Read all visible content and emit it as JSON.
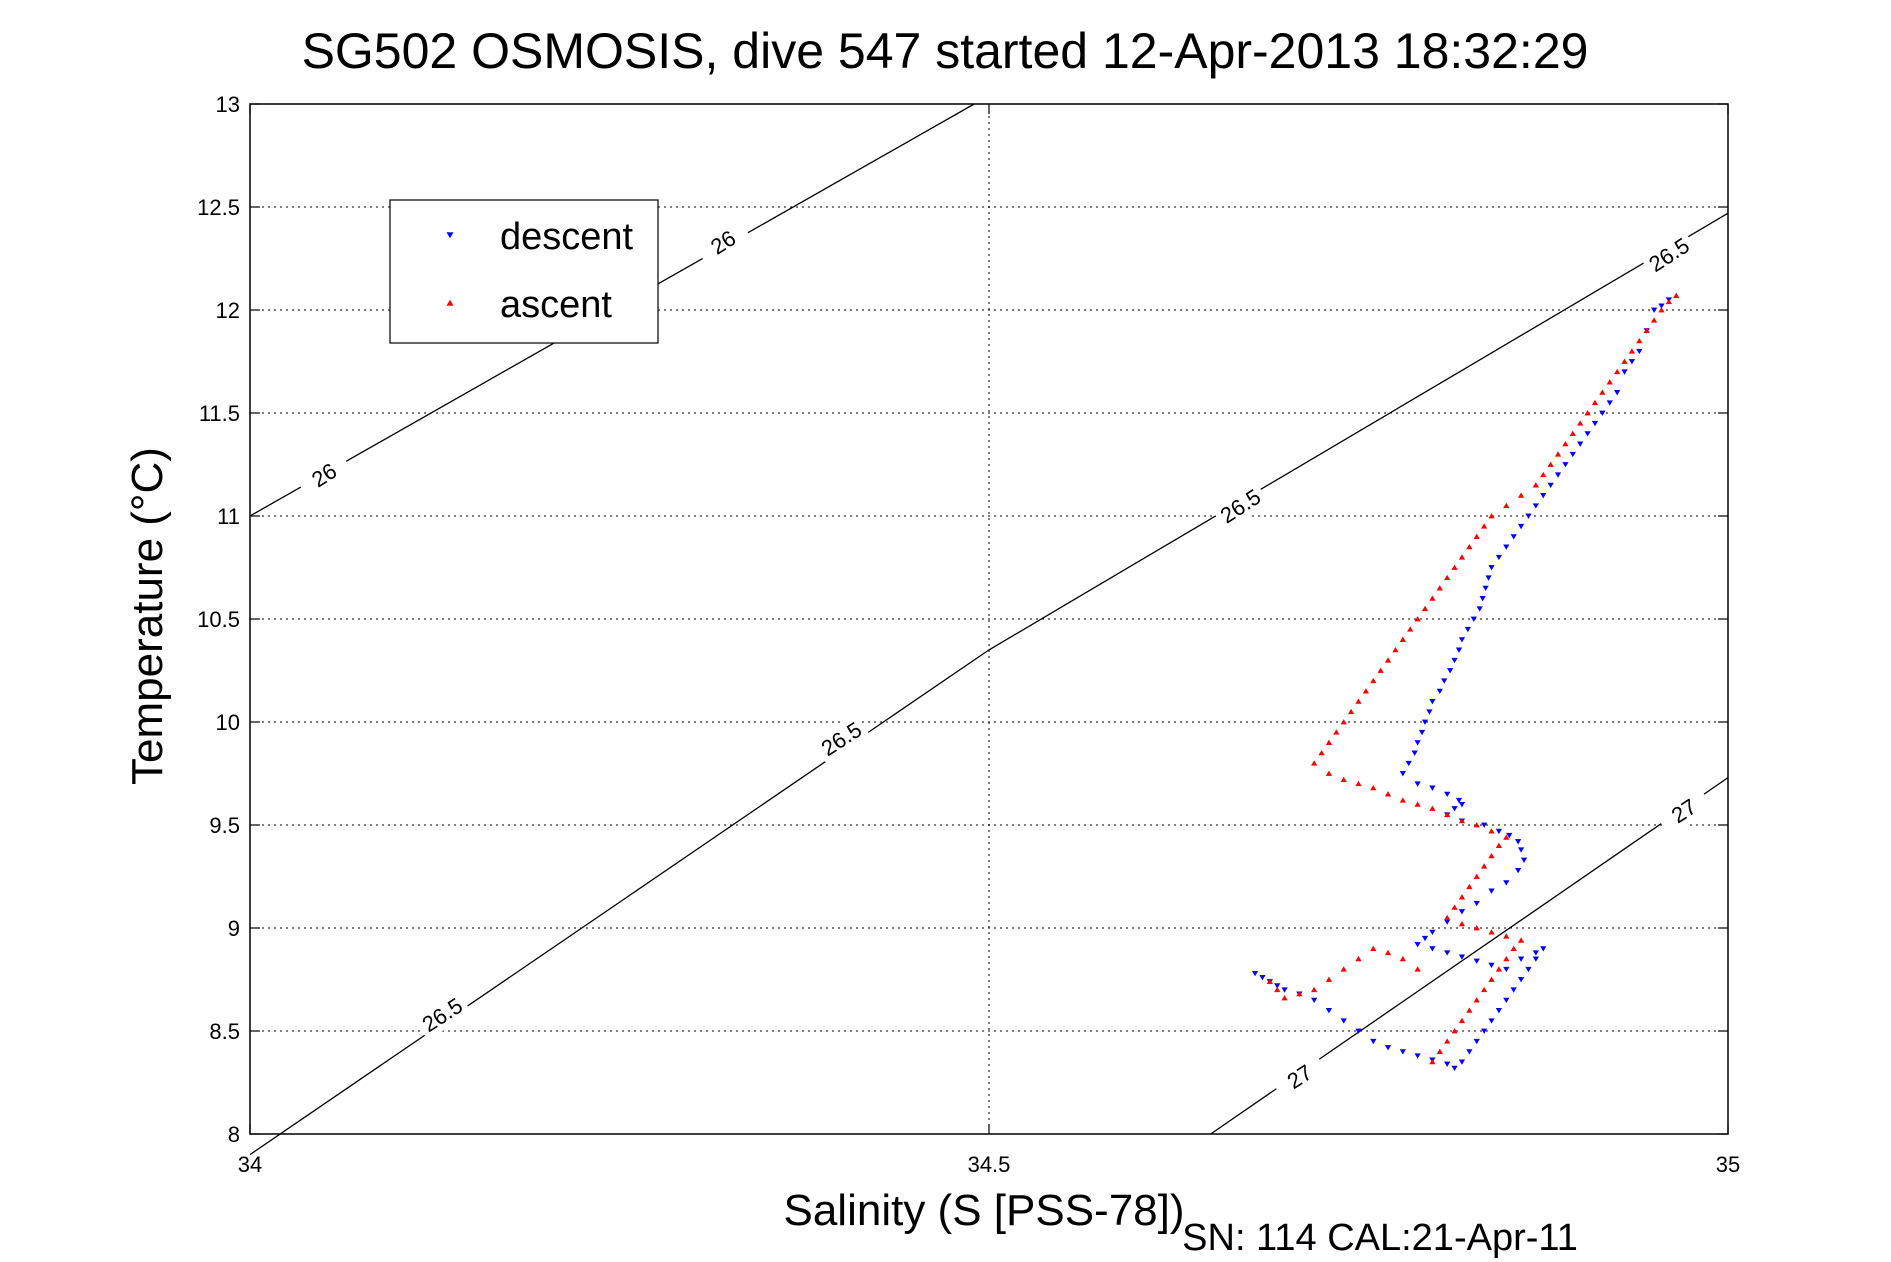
{
  "chart_data": {
    "type": "scatter",
    "title": "SG502 OSMOSIS, dive 547 started 12-Apr-2013 18:32:29",
    "xlabel": "Salinity (S [PSS-78])",
    "ylabel": "Temperature (°C)",
    "footer": "SN: 114  CAL:21-Apr-11",
    "xlim": [
      34,
      35
    ],
    "ylim": [
      8,
      13
    ],
    "xticks": [
      "34",
      "34.5",
      "35"
    ],
    "yticks": [
      "8",
      "8.5",
      "9",
      "9.5",
      "10",
      "10.5",
      "11",
      "11.5",
      "12",
      "12.5",
      "13"
    ],
    "grid": true,
    "legend_position": "upper-left",
    "density_contours": [
      {
        "label": "26",
        "points": [
          [
            34.0,
            11.0
          ],
          [
            34.49,
            13.0
          ]
        ],
        "label_positions": [
          [
            34.05,
            11.2
          ],
          [
            34.32,
            12.33
          ]
        ]
      },
      {
        "label": "26.5",
        "points": [
          [
            34.0,
            7.9
          ],
          [
            34.5,
            10.35
          ],
          [
            35.0,
            12.47
          ]
        ],
        "label_positions": [
          [
            34.13,
            8.58
          ],
          [
            34.4,
            9.92
          ],
          [
            34.67,
            11.05
          ],
          [
            34.96,
            12.27
          ]
        ]
      },
      {
        "label": "27",
        "points": [
          [
            34.65,
            8.0
          ],
          [
            35.0,
            9.73
          ]
        ],
        "label_positions": [
          [
            34.71,
            8.28
          ],
          [
            34.97,
            9.57
          ]
        ]
      }
    ],
    "series": [
      {
        "name": "descent",
        "color": "#0000ff",
        "marker": "triangle-down",
        "points": [
          [
            34.96,
            12.05
          ],
          [
            34.955,
            12.02
          ],
          [
            34.95,
            12.0
          ],
          [
            34.945,
            11.9
          ],
          [
            34.94,
            11.8
          ],
          [
            34.935,
            11.75
          ],
          [
            34.93,
            11.7
          ],
          [
            34.925,
            11.6
          ],
          [
            34.92,
            11.55
          ],
          [
            34.915,
            11.5
          ],
          [
            34.91,
            11.45
          ],
          [
            34.905,
            11.4
          ],
          [
            34.9,
            11.35
          ],
          [
            34.895,
            11.3
          ],
          [
            34.89,
            11.25
          ],
          [
            34.885,
            11.2
          ],
          [
            34.88,
            11.15
          ],
          [
            34.875,
            11.1
          ],
          [
            34.87,
            11.05
          ],
          [
            34.865,
            11.0
          ],
          [
            34.86,
            10.95
          ],
          [
            34.855,
            10.9
          ],
          [
            34.85,
            10.85
          ],
          [
            34.845,
            10.8
          ],
          [
            34.84,
            10.75
          ],
          [
            34.838,
            10.7
          ],
          [
            34.836,
            10.65
          ],
          [
            34.834,
            10.6
          ],
          [
            34.832,
            10.55
          ],
          [
            34.828,
            10.5
          ],
          [
            34.824,
            10.45
          ],
          [
            34.82,
            10.4
          ],
          [
            34.818,
            10.35
          ],
          [
            34.815,
            10.3
          ],
          [
            34.812,
            10.25
          ],
          [
            34.808,
            10.2
          ],
          [
            34.805,
            10.15
          ],
          [
            34.8,
            10.1
          ],
          [
            34.798,
            10.05
          ],
          [
            34.795,
            10.0
          ],
          [
            34.793,
            9.95
          ],
          [
            34.79,
            9.9
          ],
          [
            34.788,
            9.85
          ],
          [
            34.784,
            9.8
          ],
          [
            34.78,
            9.75
          ],
          [
            34.79,
            9.7
          ],
          [
            34.8,
            9.68
          ],
          [
            34.81,
            9.65
          ],
          [
            34.818,
            9.62
          ],
          [
            34.82,
            9.6
          ],
          [
            34.815,
            9.58
          ],
          [
            34.81,
            9.55
          ],
          [
            34.82,
            9.52
          ],
          [
            34.835,
            9.5
          ],
          [
            34.845,
            9.47
          ],
          [
            34.852,
            9.45
          ],
          [
            34.858,
            9.42
          ],
          [
            34.86,
            9.38
          ],
          [
            34.862,
            9.33
          ],
          [
            34.858,
            9.28
          ],
          [
            34.85,
            9.22
          ],
          [
            34.84,
            9.18
          ],
          [
            34.83,
            9.12
          ],
          [
            34.82,
            9.08
          ],
          [
            34.81,
            9.03
          ],
          [
            34.8,
            8.98
          ],
          [
            34.795,
            8.95
          ],
          [
            34.79,
            8.92
          ],
          [
            34.8,
            8.9
          ],
          [
            34.81,
            8.88
          ],
          [
            34.82,
            8.86
          ],
          [
            34.83,
            8.84
          ],
          [
            34.84,
            8.82
          ],
          [
            34.85,
            8.8
          ],
          [
            34.86,
            8.85
          ],
          [
            34.87,
            8.88
          ],
          [
            34.875,
            8.9
          ],
          [
            34.87,
            8.85
          ],
          [
            34.865,
            8.8
          ],
          [
            34.86,
            8.75
          ],
          [
            34.855,
            8.7
          ],
          [
            34.85,
            8.65
          ],
          [
            34.845,
            8.6
          ],
          [
            34.84,
            8.55
          ],
          [
            34.835,
            8.5
          ],
          [
            34.83,
            8.45
          ],
          [
            34.825,
            8.4
          ],
          [
            34.82,
            8.35
          ],
          [
            34.815,
            8.32
          ],
          [
            34.81,
            8.34
          ],
          [
            34.8,
            8.36
          ],
          [
            34.79,
            8.38
          ],
          [
            34.78,
            8.4
          ],
          [
            34.77,
            8.42
          ],
          [
            34.76,
            8.45
          ],
          [
            34.75,
            8.5
          ],
          [
            34.74,
            8.55
          ],
          [
            34.73,
            8.6
          ],
          [
            34.72,
            8.65
          ],
          [
            34.71,
            8.68
          ],
          [
            34.7,
            8.7
          ],
          [
            34.695,
            8.72
          ],
          [
            34.69,
            8.74
          ],
          [
            34.685,
            8.76
          ],
          [
            34.68,
            8.78
          ]
        ]
      },
      {
        "name": "ascent",
        "color": "#ff0000",
        "marker": "triangle-up",
        "points": [
          [
            34.965,
            12.07
          ],
          [
            34.96,
            12.04
          ],
          [
            34.955,
            12.0
          ],
          [
            34.95,
            11.95
          ],
          [
            34.945,
            11.9
          ],
          [
            34.94,
            11.85
          ],
          [
            34.935,
            11.8
          ],
          [
            34.93,
            11.75
          ],
          [
            34.925,
            11.7
          ],
          [
            34.92,
            11.65
          ],
          [
            34.915,
            11.6
          ],
          [
            34.91,
            11.55
          ],
          [
            34.905,
            11.5
          ],
          [
            34.9,
            11.45
          ],
          [
            34.895,
            11.4
          ],
          [
            34.89,
            11.35
          ],
          [
            34.885,
            11.3
          ],
          [
            34.88,
            11.25
          ],
          [
            34.875,
            11.2
          ],
          [
            34.87,
            11.15
          ],
          [
            34.86,
            11.1
          ],
          [
            34.85,
            11.05
          ],
          [
            34.84,
            11.0
          ],
          [
            34.835,
            10.95
          ],
          [
            34.83,
            10.9
          ],
          [
            34.825,
            10.85
          ],
          [
            34.82,
            10.8
          ],
          [
            34.815,
            10.75
          ],
          [
            34.81,
            10.7
          ],
          [
            34.805,
            10.65
          ],
          [
            34.8,
            10.6
          ],
          [
            34.795,
            10.55
          ],
          [
            34.79,
            10.5
          ],
          [
            34.785,
            10.45
          ],
          [
            34.78,
            10.4
          ],
          [
            34.775,
            10.35
          ],
          [
            34.77,
            10.3
          ],
          [
            34.765,
            10.25
          ],
          [
            34.76,
            10.2
          ],
          [
            34.755,
            10.15
          ],
          [
            34.75,
            10.1
          ],
          [
            34.745,
            10.05
          ],
          [
            34.74,
            10.0
          ],
          [
            34.735,
            9.95
          ],
          [
            34.73,
            9.9
          ],
          [
            34.725,
            9.85
          ],
          [
            34.72,
            9.8
          ],
          [
            34.73,
            9.75
          ],
          [
            34.74,
            9.72
          ],
          [
            34.75,
            9.7
          ],
          [
            34.76,
            9.68
          ],
          [
            34.77,
            9.65
          ],
          [
            34.78,
            9.62
          ],
          [
            34.79,
            9.6
          ],
          [
            34.8,
            9.58
          ],
          [
            34.81,
            9.55
          ],
          [
            34.82,
            9.52
          ],
          [
            34.83,
            9.5
          ],
          [
            34.84,
            9.47
          ],
          [
            34.85,
            9.44
          ],
          [
            34.845,
            9.4
          ],
          [
            34.84,
            9.35
          ],
          [
            34.835,
            9.3
          ],
          [
            34.83,
            9.25
          ],
          [
            34.825,
            9.2
          ],
          [
            34.82,
            9.15
          ],
          [
            34.815,
            9.1
          ],
          [
            34.81,
            9.05
          ],
          [
            34.82,
            9.02
          ],
          [
            34.83,
            9.0
          ],
          [
            34.84,
            8.98
          ],
          [
            34.85,
            8.96
          ],
          [
            34.86,
            8.94
          ],
          [
            34.855,
            8.9
          ],
          [
            34.85,
            8.85
          ],
          [
            34.845,
            8.8
          ],
          [
            34.84,
            8.75
          ],
          [
            34.835,
            8.7
          ],
          [
            34.83,
            8.65
          ],
          [
            34.825,
            8.6
          ],
          [
            34.82,
            8.55
          ],
          [
            34.815,
            8.5
          ],
          [
            34.81,
            8.45
          ],
          [
            34.805,
            8.4
          ],
          [
            34.8,
            8.35
          ],
          [
            34.79,
            8.8
          ],
          [
            34.78,
            8.85
          ],
          [
            34.77,
            8.88
          ],
          [
            34.76,
            8.9
          ],
          [
            34.75,
            8.85
          ],
          [
            34.74,
            8.8
          ],
          [
            34.73,
            8.75
          ],
          [
            34.72,
            8.7
          ],
          [
            34.71,
            8.68
          ],
          [
            34.7,
            8.66
          ],
          [
            34.695,
            8.7
          ],
          [
            34.69,
            8.74
          ]
        ]
      }
    ]
  }
}
